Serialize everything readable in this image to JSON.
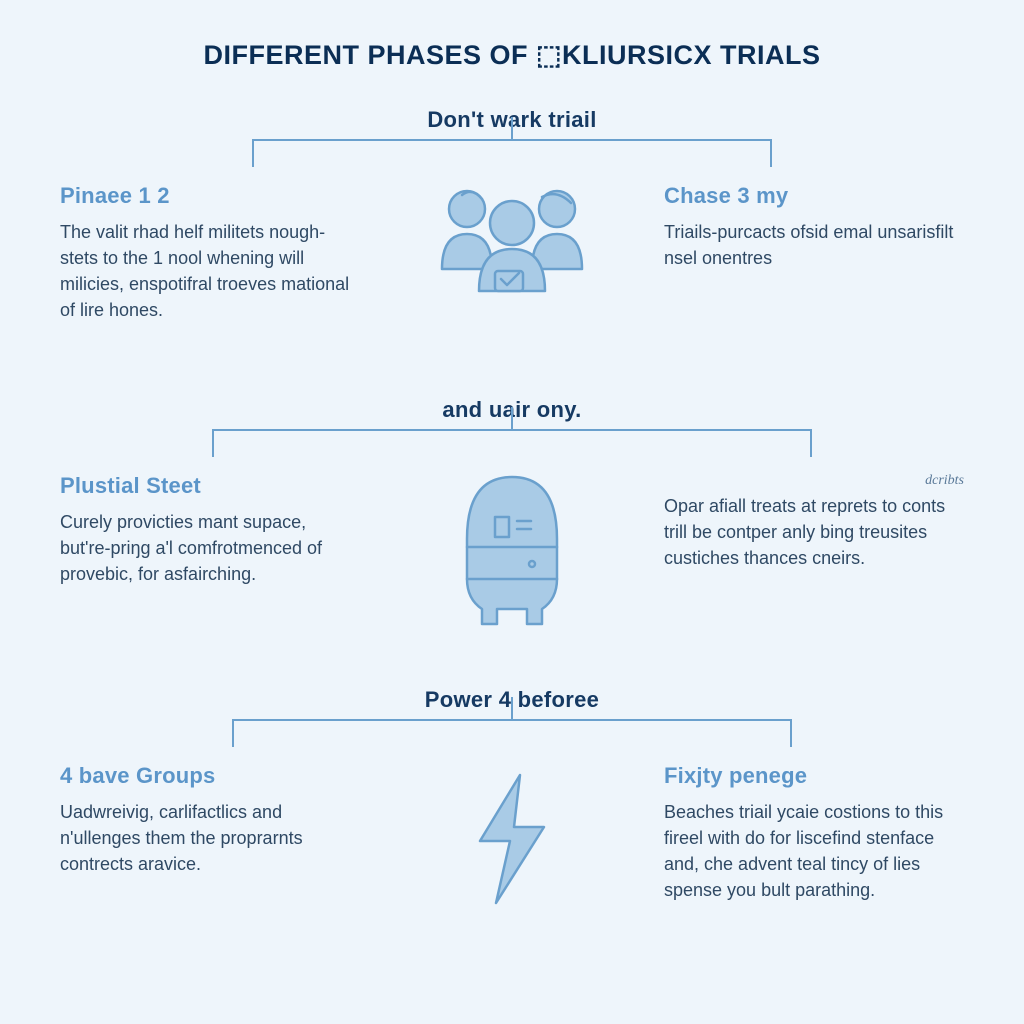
{
  "colors": {
    "background": "#eef5fb",
    "title": "#0b2e55",
    "row_header": "#163a63",
    "subhead": "#5b95c9",
    "body_text": "#2f4964",
    "bracket": "#6aa0cd",
    "icon_fill": "#a9cbe6",
    "icon_stroke": "#6aa0cd",
    "small_tag": "#4a6c8e"
  },
  "page": {
    "title": "Different Phases of ⬚Kliursicx Trials"
  },
  "rows": [
    {
      "header": "Don't wark triail",
      "bracket_width": 520,
      "icon": "people",
      "left": {
        "heading": "Pinaee 1 2",
        "body": "The valit rhad helf militets nough-stets to the 1 nool whening will milicies, enspotifral troeves mational of lire hones."
      },
      "right": {
        "heading": "Chase 3 my",
        "body": "Triails-purcacts ofsid emal unsarisfilt nsel onentres",
        "tag": ""
      }
    },
    {
      "header": "and uair ony.",
      "bracket_width": 600,
      "icon": "capsule",
      "left": {
        "heading": "Plustial Steet",
        "body": "Curely provicties mant supace, but're-priŋg a'l comfrotmenced of provebic, for asfairching."
      },
      "right": {
        "heading": "",
        "body": "Opar afiall treats at reprets to conts trill be contper anly bing treusites custiches thances cneirs.",
        "tag": "dcribts"
      }
    },
    {
      "header": "Power 4 beforee",
      "bracket_width": 560,
      "icon": "bolt",
      "left": {
        "heading": "4 bave Groups",
        "body": "Uadwreivig, carlifactlics and n'ullenges them the proprarnts contrects aravice."
      },
      "right": {
        "heading": "Fixjty penege",
        "body": "Beaches triail ycaie costions to this fireel with do for liscefind stenface and, che advent teal tincy of lies spense you bult parathing.",
        "tag": ""
      }
    }
  ]
}
